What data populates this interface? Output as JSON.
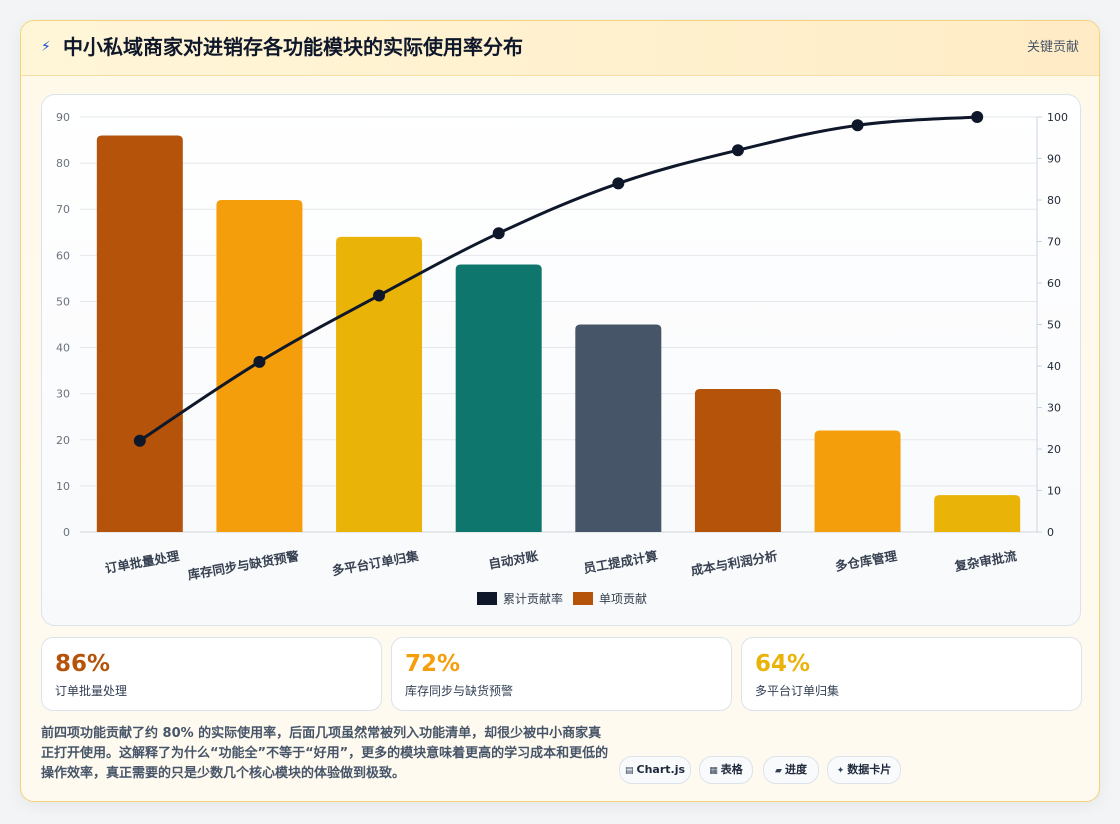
{
  "header": {
    "icon": "lightning-icon",
    "title": "中小私域商家对进销存各功能模块的实际使用率分布",
    "link": "关键贡献"
  },
  "chart_data": {
    "type": "bar",
    "categories": [
      "订单批量处理",
      "库存同步与缺货预警",
      "多平台订单归集",
      "自动对账",
      "员工提成计算",
      "成本与利润分析",
      "多仓库管理",
      "复杂审批流"
    ],
    "series": [
      {
        "name": "单项贡献",
        "type": "bar",
        "axis": "left",
        "values": [
          86,
          72,
          64,
          58,
          45,
          31,
          22,
          8
        ]
      },
      {
        "name": "累计贡献率",
        "type": "line",
        "axis": "right",
        "values": [
          22,
          41,
          57,
          72,
          84,
          92,
          98,
          100
        ]
      }
    ],
    "bar_colors": [
      "#b45309",
      "#f59e0b",
      "#eab308",
      "#0f766e",
      "#475569",
      "#b45309",
      "#f59e0b",
      "#eab308"
    ],
    "line_color": "#0f172a",
    "y_left_ticks": [
      0,
      10,
      20,
      30,
      40,
      50,
      60,
      70,
      80,
      90
    ],
    "y_right_ticks": [
      0,
      10,
      20,
      30,
      40,
      50,
      60,
      70,
      80,
      90,
      100
    ],
    "ylim_left": [
      0,
      90
    ],
    "ylim_right": [
      0,
      100
    ],
    "grid": true,
    "legend": [
      {
        "label": "累计贡献率",
        "color": "#0f172a"
      },
      {
        "label": "单项贡献",
        "color": "#b45309"
      }
    ],
    "legend_position": "bottom"
  },
  "stats": [
    {
      "value": "86%",
      "label": "订单批量处理",
      "color": "#b45309"
    },
    {
      "value": "72%",
      "label": "库存同步与缺货预警",
      "color": "#f59e0b"
    },
    {
      "value": "64%",
      "label": "多平台订单归集",
      "color": "#eab308"
    }
  ],
  "description": "前四项功能贡献了约 80% 的实际使用率，后面几项虽然常被列入功能清单，却很少被中小商家真正打开使用。这解释了为什么“功能全”不等于“好用”，更多的模块意味着更高的学习成本和更低的操作效率，真正需要的只是少数几个核心模块的体验做到极致。",
  "chips": [
    {
      "icon": "chart-icon",
      "glyph": "▤",
      "label": "Chart.js"
    },
    {
      "icon": "table-icon",
      "glyph": "▦",
      "label": "表格"
    },
    {
      "icon": "progress-icon",
      "glyph": "▰",
      "label": "进度"
    },
    {
      "icon": "sparkle-icon",
      "glyph": "✦",
      "label": "数据卡片"
    }
  ]
}
